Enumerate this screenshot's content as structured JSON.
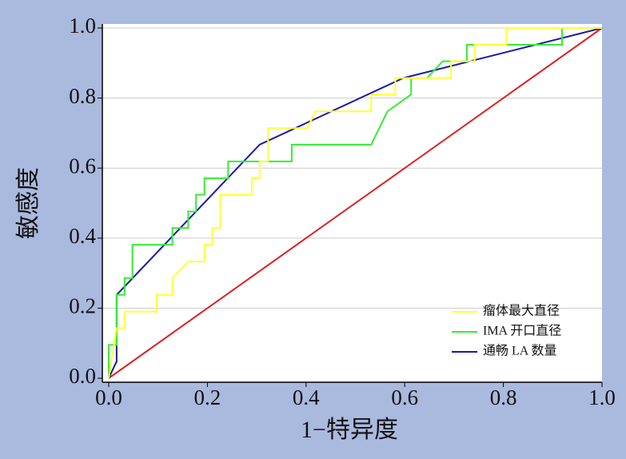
{
  "chart_data": {
    "type": "line",
    "x_label": "1−特异度",
    "y_label": "敏感度",
    "xlim": [
      0,
      1
    ],
    "ylim": [
      0,
      1
    ],
    "xticks": [
      {
        "value": 0,
        "label": "0.0"
      },
      0.2,
      0.4,
      0.6,
      0.8,
      {
        "value": 1,
        "label": "1.0"
      }
    ],
    "yticks": [
      {
        "value": 0,
        "label": "0.0"
      },
      0.2,
      0.4,
      0.6,
      0.8,
      {
        "value": 1,
        "label": "1.0"
      }
    ],
    "grid": true,
    "legend": "lower right",
    "series": [
      {
        "name": "瘤体最大直径",
        "color": "#ffff33",
        "x": [
          0,
          0.016,
          0.032,
          0.032,
          0.097,
          0.097,
          0.129,
          0.129,
          0.161,
          0.194,
          0.194,
          0.21,
          0.21,
          0.226,
          0.226,
          0.29,
          0.29,
          0.306,
          0.306,
          0.323,
          0.323,
          0.403,
          0.419,
          0.532,
          0.532,
          0.581,
          0.581,
          0.694,
          0.694,
          0.742,
          0.742,
          0.806,
          0.806,
          1
        ],
        "values": [
          0,
          0.143,
          0.143,
          0.19,
          0.19,
          0.238,
          0.238,
          0.286,
          0.333,
          0.333,
          0.381,
          0.381,
          0.429,
          0.429,
          0.524,
          0.524,
          0.571,
          0.571,
          0.619,
          0.619,
          0.714,
          0.714,
          0.762,
          0.762,
          0.81,
          0.81,
          0.857,
          0.857,
          0.905,
          0.905,
          0.952,
          0.952,
          1,
          1
        ]
      },
      {
        "name": "IMA 开口直径",
        "color": "#33ee33",
        "x": [
          0,
          0,
          0.016,
          0.016,
          0.032,
          0.032,
          0.048,
          0.048,
          0.129,
          0.129,
          0.161,
          0.161,
          0.177,
          0.177,
          0.194,
          0.194,
          0.242,
          0.242,
          0.371,
          0.371,
          0.532,
          0.565,
          0.613,
          0.613,
          0.645,
          0.677,
          0.726,
          0.726,
          0.919,
          0.919,
          1
        ],
        "values": [
          0,
          0.095,
          0.095,
          0.238,
          0.238,
          0.286,
          0.286,
          0.381,
          0.381,
          0.429,
          0.429,
          0.476,
          0.476,
          0.524,
          0.524,
          0.571,
          0.571,
          0.619,
          0.619,
          0.667,
          0.667,
          0.762,
          0.81,
          0.857,
          0.857,
          0.905,
          0.905,
          0.952,
          0.952,
          1,
          1
        ]
      },
      {
        "name": "通畅 LA 数量",
        "color": "#1a1aaa",
        "x": [
          0,
          0.016,
          0.016,
          0.306,
          0.597,
          1
        ],
        "values": [
          0,
          0.048,
          0.238,
          0.667,
          0.857,
          1
        ]
      },
      {
        "color": "#dd2222",
        "x": [
          0,
          1
        ],
        "values": [
          0,
          1
        ]
      }
    ]
  }
}
